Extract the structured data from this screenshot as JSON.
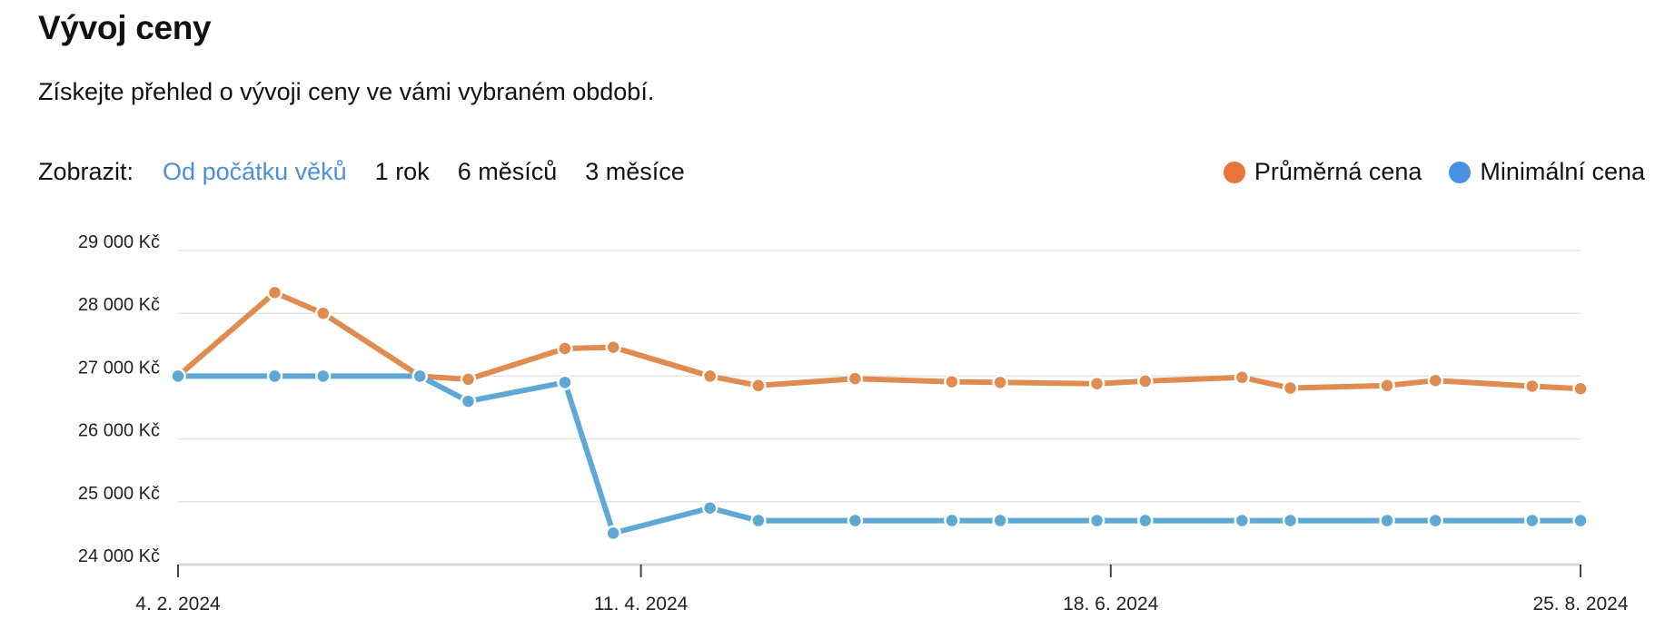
{
  "header": {
    "title": "Vývoj ceny",
    "subtitle": "Získejte přehled o vývoji ceny ve vámi vybraném období."
  },
  "controls": {
    "label": "Zobrazit:",
    "ranges": [
      {
        "label": "Od počátku věků",
        "active": true
      },
      {
        "label": "1 rok",
        "active": false
      },
      {
        "label": "6 měsíců",
        "active": false
      },
      {
        "label": "3 měsíce",
        "active": false
      }
    ]
  },
  "legend": {
    "items": [
      {
        "label": "Průměrná cena",
        "color": "#e8743b"
      },
      {
        "label": "Minimální cena",
        "color": "#4a90e2"
      }
    ]
  },
  "chart_data": {
    "type": "line",
    "title": "",
    "xlabel": "",
    "ylabel": "",
    "ylim": [
      24000,
      29000
    ],
    "xlim": [
      "2024-02-04",
      "2024-08-25"
    ],
    "y_ticks": [
      {
        "value": 29000,
        "label": "29 000 Kč"
      },
      {
        "value": 28000,
        "label": "28 000 Kč"
      },
      {
        "value": 27000,
        "label": "27 000 Kč"
      },
      {
        "value": 26000,
        "label": "26 000 Kč"
      },
      {
        "value": 25000,
        "label": "25 000 Kč"
      },
      {
        "value": 24000,
        "label": "24 000 Kč"
      }
    ],
    "x_ticks": [
      {
        "value": "2024-02-04",
        "label": "4. 2. 2024"
      },
      {
        "value": "2024-04-11",
        "label": "11. 4. 2024"
      },
      {
        "value": "2024-06-18",
        "label": "18. 6. 2024"
      },
      {
        "value": "2024-08-25",
        "label": "25. 8. 2024"
      }
    ],
    "grid": true,
    "series": [
      {
        "name": "Průměrná cena",
        "color": "#e08b4f",
        "points": [
          {
            "x": "2024-02-04",
            "y": 27000
          },
          {
            "x": "2024-02-18",
            "y": 28330
          },
          {
            "x": "2024-02-25",
            "y": 28000
          },
          {
            "x": "2024-03-10",
            "y": 27000
          },
          {
            "x": "2024-03-17",
            "y": 26950
          },
          {
            "x": "2024-03-31",
            "y": 27440
          },
          {
            "x": "2024-04-07",
            "y": 27460
          },
          {
            "x": "2024-04-21",
            "y": 27000
          },
          {
            "x": "2024-04-28",
            "y": 26850
          },
          {
            "x": "2024-05-12",
            "y": 26960
          },
          {
            "x": "2024-05-26",
            "y": 26910
          },
          {
            "x": "2024-06-02",
            "y": 26900
          },
          {
            "x": "2024-06-16",
            "y": 26880
          },
          {
            "x": "2024-06-23",
            "y": 26920
          },
          {
            "x": "2024-07-07",
            "y": 26980
          },
          {
            "x": "2024-07-14",
            "y": 26810
          },
          {
            "x": "2024-07-28",
            "y": 26850
          },
          {
            "x": "2024-08-04",
            "y": 26930
          },
          {
            "x": "2024-08-18",
            "y": 26840
          },
          {
            "x": "2024-08-25",
            "y": 26800
          }
        ]
      },
      {
        "name": "Minimální cena",
        "color": "#5ea8d6",
        "points": [
          {
            "x": "2024-02-04",
            "y": 27000
          },
          {
            "x": "2024-02-18",
            "y": 27000
          },
          {
            "x": "2024-02-25",
            "y": 27000
          },
          {
            "x": "2024-03-10",
            "y": 27000
          },
          {
            "x": "2024-03-17",
            "y": 26600
          },
          {
            "x": "2024-03-31",
            "y": 26900
          },
          {
            "x": "2024-04-07",
            "y": 24500
          },
          {
            "x": "2024-04-21",
            "y": 24900
          },
          {
            "x": "2024-04-28",
            "y": 24700
          },
          {
            "x": "2024-05-12",
            "y": 24700
          },
          {
            "x": "2024-05-26",
            "y": 24700
          },
          {
            "x": "2024-06-02",
            "y": 24700
          },
          {
            "x": "2024-06-16",
            "y": 24700
          },
          {
            "x": "2024-06-23",
            "y": 24700
          },
          {
            "x": "2024-07-07",
            "y": 24700
          },
          {
            "x": "2024-07-14",
            "y": 24700
          },
          {
            "x": "2024-07-28",
            "y": 24700
          },
          {
            "x": "2024-08-04",
            "y": 24700
          },
          {
            "x": "2024-08-18",
            "y": 24700
          },
          {
            "x": "2024-08-25",
            "y": 24700
          }
        ]
      }
    ]
  }
}
